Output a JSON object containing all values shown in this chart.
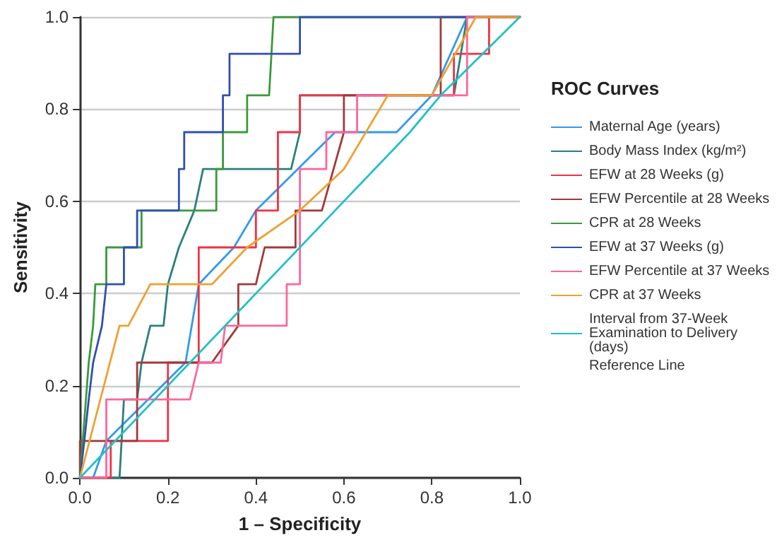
{
  "chart_data": {
    "type": "line",
    "xlabel": "1 – Specificity",
    "ylabel": "Sensitivity",
    "legend_title": "ROC Curves",
    "legend": "right",
    "grid": "y",
    "marker": "none",
    "line_style": "solid",
    "xlim": [
      0,
      1
    ],
    "ylim": [
      0,
      1
    ],
    "xticks": [
      {
        "value": 0,
        "label": "0.0"
      },
      {
        "value": 0.2,
        "label": "0.2"
      },
      {
        "value": 0.4,
        "label": "0.4"
      },
      {
        "value": 0.6,
        "label": "0.6"
      },
      {
        "value": 0.8,
        "label": "0.8"
      },
      {
        "value": 1,
        "label": "1.0"
      }
    ],
    "yticks": [
      {
        "value": 0,
        "label": "0.0"
      },
      {
        "value": 0.2,
        "label": "0.2"
      },
      {
        "value": 0.4,
        "label": "0.4"
      },
      {
        "value": 0.6,
        "label": "0.6"
      },
      {
        "value": 0.8,
        "label": "0.8"
      },
      {
        "value": 1,
        "label": "1.0"
      }
    ],
    "annotations": [
      "Reference Line"
    ],
    "series": [
      {
        "name": "Maternal Age (years)",
        "color": "#3399ee",
        "x": [
          0,
          0.03,
          0.06,
          0.24,
          0.27,
          0.35,
          0.4,
          0.58,
          0.72,
          0.8,
          0.88,
          1
        ],
        "values": [
          0,
          0,
          0.08,
          0.25,
          0.42,
          0.5,
          0.58,
          0.75,
          0.75,
          0.83,
          1,
          1
        ]
      },
      {
        "name": "Body Mass Index (kg/m²)",
        "color": "#2a7f7f",
        "x": [
          0,
          0.09,
          0.1,
          0.13,
          0.14,
          0.16,
          0.19,
          0.2,
          0.225,
          0.26,
          0.28,
          0.48,
          0.5,
          0.5,
          0.85,
          0.88,
          1
        ],
        "values": [
          0,
          0,
          0.17,
          0.17,
          0.25,
          0.33,
          0.33,
          0.42,
          0.5,
          0.58,
          0.67,
          0.67,
          0.75,
          0.83,
          0.83,
          1,
          1
        ]
      },
      {
        "name": "EFW at 28 Weeks (g)",
        "color": "#ee3344",
        "x": [
          0,
          0.07,
          0.07,
          0.2,
          0.2,
          0.27,
          0.27,
          0.4,
          0.4,
          0.45,
          0.45,
          0.5,
          0.5,
          0.85,
          0.85,
          0.93,
          0.93,
          1
        ],
        "values": [
          0,
          0,
          0.08,
          0.08,
          0.25,
          0.25,
          0.5,
          0.5,
          0.58,
          0.58,
          0.75,
          0.75,
          0.83,
          0.83,
          0.92,
          0.92,
          1,
          1
        ]
      },
      {
        "name": "EFW Percentile at 28 Weeks",
        "color": "#a03a3a",
        "x": [
          0,
          0,
          0.13,
          0.13,
          0.3,
          0.36,
          0.36,
          0.4,
          0.42,
          0.49,
          0.49,
          0.55,
          0.6,
          0.6,
          0.82,
          0.82,
          1
        ],
        "values": [
          0,
          0.08,
          0.08,
          0.25,
          0.25,
          0.33,
          0.42,
          0.42,
          0.5,
          0.5,
          0.58,
          0.58,
          0.75,
          0.83,
          0.83,
          1,
          1
        ]
      },
      {
        "name": "CPR at 28 Weeks",
        "color": "#3a9a3a",
        "x": [
          0,
          0.02,
          0.03,
          0.035,
          0.06,
          0.06,
          0.14,
          0.14,
          0.31,
          0.31,
          0.325,
          0.325,
          0.38,
          0.38,
          0.43,
          0.44,
          1
        ],
        "values": [
          0,
          0.25,
          0.33,
          0.42,
          0.42,
          0.5,
          0.5,
          0.58,
          0.58,
          0.67,
          0.67,
          0.75,
          0.75,
          0.83,
          0.83,
          1,
          1
        ]
      },
      {
        "name": "EFW at 37 Weeks (g)",
        "color": "#3050b0",
        "x": [
          0,
          0.01,
          0.02,
          0.03,
          0.05,
          0.06,
          0.1,
          0.1,
          0.13,
          0.13,
          0.225,
          0.225,
          0.237,
          0.237,
          0.325,
          0.325,
          0.34,
          0.34,
          0.5,
          0.5,
          1
        ],
        "values": [
          0,
          0.08,
          0.17,
          0.25,
          0.33,
          0.42,
          0.42,
          0.5,
          0.5,
          0.58,
          0.58,
          0.67,
          0.67,
          0.75,
          0.75,
          0.83,
          0.83,
          0.92,
          0.92,
          1,
          1
        ]
      },
      {
        "name": "EFW Percentile at 37 Weeks",
        "color": "#ff6699",
        "x": [
          0,
          0.06,
          0.06,
          0.25,
          0.27,
          0.32,
          0.33,
          0.47,
          0.47,
          0.5,
          0.5,
          0.56,
          0.56,
          0.63,
          0.63,
          0.88,
          0.88,
          1
        ],
        "values": [
          0,
          0,
          0.17,
          0.17,
          0.25,
          0.25,
          0.33,
          0.33,
          0.42,
          0.42,
          0.67,
          0.67,
          0.75,
          0.75,
          0.83,
          0.83,
          1,
          1
        ]
      },
      {
        "name": "CPR at 37 Weeks",
        "color": "#f0a030",
        "x": [
          0,
          0.09,
          0.11,
          0.16,
          0.3,
          0.38,
          0.5,
          0.6,
          0.7,
          0.8,
          0.9,
          1
        ],
        "values": [
          0,
          0.33,
          0.33,
          0.42,
          0.42,
          0.5,
          0.58,
          0.67,
          0.83,
          0.83,
          1,
          1
        ]
      },
      {
        "name": "Interval from 37-Week Examination to Delivery (days)",
        "color": "#22c0c8",
        "x": [
          0,
          0.75,
          0.82,
          1
        ],
        "values": [
          0,
          0.75,
          0.83,
          1
        ]
      }
    ]
  }
}
